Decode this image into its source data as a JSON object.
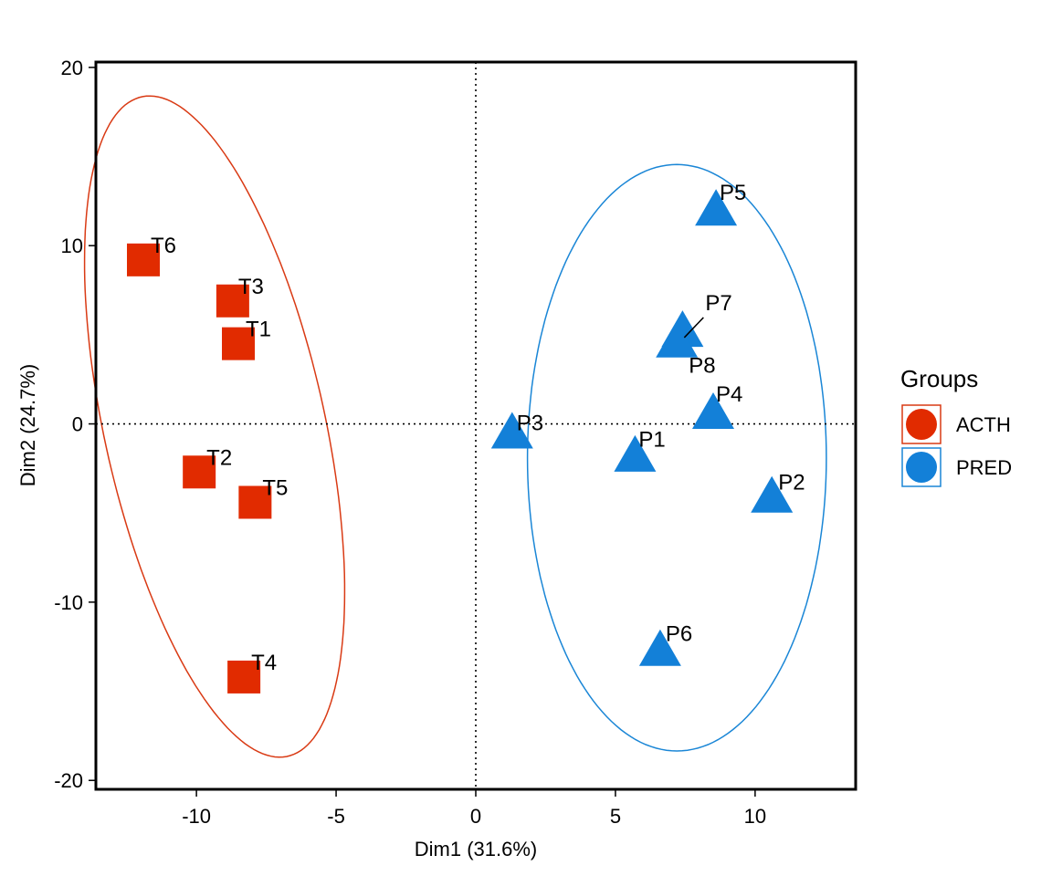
{
  "chart_data": {
    "type": "scatter",
    "xlabel": "Dim1 (31.6%)",
    "ylabel": "Dim2 (24.7%)",
    "xlim": [
      -13.6,
      13.6
    ],
    "ylim": [
      -20.5,
      20.3
    ],
    "xticks": [
      -10,
      -5,
      0,
      5,
      10
    ],
    "yticks": [
      -20,
      -10,
      0,
      10,
      20
    ],
    "grid": false,
    "reference_lines": {
      "x": 0,
      "y": 0,
      "style": "dotted"
    },
    "legend": {
      "title": "Groups",
      "placement": "right"
    },
    "series": [
      {
        "name": "ACTH",
        "color": "#E12B00",
        "ellipse_color": "#D93A14",
        "marker": "square",
        "points": [
          {
            "label": "T1",
            "x": -8.5,
            "y": 4.5
          },
          {
            "label": "T2",
            "x": -9.9,
            "y": -2.7
          },
          {
            "label": "T3",
            "x": -8.7,
            "y": 6.9
          },
          {
            "label": "T4",
            "x": -8.3,
            "y": -14.2
          },
          {
            "label": "T5",
            "x": -7.9,
            "y": -4.4
          },
          {
            "label": "T6",
            "x": -11.9,
            "y": 9.2
          }
        ],
        "ellipse": {
          "cx": -9.35,
          "cy": -0.15,
          "rx": 4.0,
          "ry": 18.7,
          "angle_deg": 7.5
        }
      },
      {
        "name": "PRED",
        "color": "#1380D8",
        "ellipse_color": "#1A86D6",
        "marker": "triangle",
        "points": [
          {
            "label": "P1",
            "x": 5.7,
            "y": -1.9
          },
          {
            "label": "P2",
            "x": 10.6,
            "y": -4.2
          },
          {
            "label": "P3",
            "x": 1.3,
            "y": -0.6
          },
          {
            "label": "P4",
            "x": 8.5,
            "y": 0.5
          },
          {
            "label": "P5",
            "x": 8.6,
            "y": 11.9
          },
          {
            "label": "P6",
            "x": 6.6,
            "y": -12.8
          },
          {
            "label": "P7",
            "x": 7.4,
            "y": 5.1
          },
          {
            "label": "P8",
            "x": 7.2,
            "y": 4.5
          }
        ],
        "ellipse": {
          "cx": 7.2,
          "cy": -1.9,
          "rx": 5.35,
          "ry": 16.45,
          "angle_deg": 0
        }
      }
    ]
  }
}
